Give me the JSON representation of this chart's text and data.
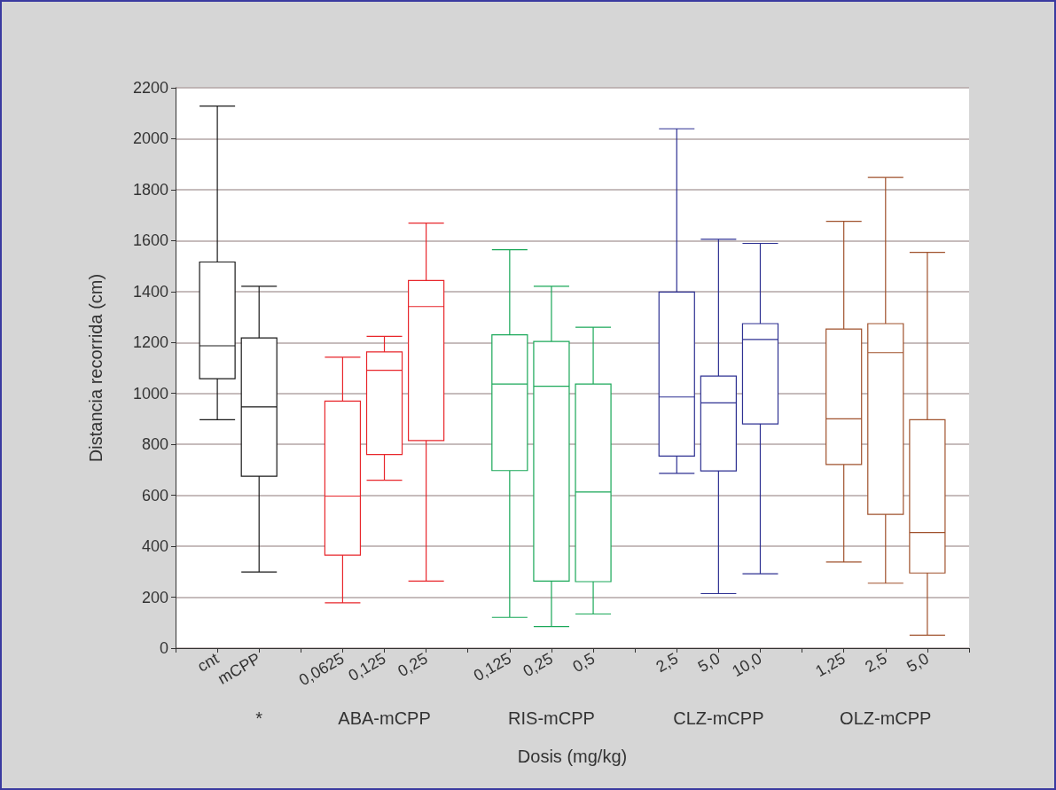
{
  "chart_data": {
    "type": "box",
    "xlabel": "Dosis (mg/kg)",
    "ylabel": "Distancia recorrida (cm)",
    "categories": [
      null,
      "cnt",
      "mCPP",
      null,
      "0,0625",
      "0,125",
      "0,25",
      null,
      "0,125",
      "0,25",
      "0,5",
      null,
      "2,5",
      "5,0",
      "10,0",
      null,
      "1,25",
      "2,5",
      "5,0",
      null
    ],
    "boxes": [
      null,
      {
        "low": 897,
        "q1": 1058,
        "median": 1187,
        "q3": 1516,
        "high": 2128
      },
      {
        "low": 299,
        "q1": 675,
        "median": 947,
        "q3": 1218,
        "high": 1421
      },
      null,
      {
        "low": 178,
        "q1": 365,
        "median": 597,
        "q3": 970,
        "high": 1142
      },
      {
        "low": 659,
        "q1": 760,
        "median": 1091,
        "q3": 1163,
        "high": 1224
      },
      {
        "low": 263,
        "q1": 815,
        "median": 1341,
        "q3": 1443,
        "high": 1669
      },
      null,
      {
        "low": 121,
        "q1": 697,
        "median": 1037,
        "q3": 1230,
        "high": 1564
      },
      {
        "low": 85,
        "q1": 263,
        "median": 1028,
        "q3": 1204,
        "high": 1421
      },
      {
        "low": 134,
        "q1": 261,
        "median": 613,
        "q3": 1037,
        "high": 1260
      },
      null,
      {
        "low": 686,
        "q1": 754,
        "median": 986,
        "q3": 1398,
        "high": 2039
      },
      {
        "low": 214,
        "q1": 696,
        "median": 963,
        "q3": 1068,
        "high": 1605
      },
      {
        "low": 292,
        "q1": 880,
        "median": 1212,
        "q3": 1274,
        "high": 1589
      },
      null,
      {
        "low": 338,
        "q1": 721,
        "median": 900,
        "q3": 1253,
        "high": 1676
      },
      {
        "low": 255,
        "q1": 525,
        "median": 1160,
        "q3": 1274,
        "high": 1848
      },
      {
        "low": 51,
        "q1": 295,
        "median": 454,
        "q3": 897,
        "high": 1554
      },
      null
    ],
    "colors": [
      null,
      "#1a1a1a",
      "#1a1a1a",
      null,
      "#e8262b",
      "#e8262b",
      "#e8262b",
      null,
      "#1aa858",
      "#1aa858",
      "#1aa858",
      null,
      "#2e3192",
      "#2e3192",
      "#2e3192",
      null,
      "#a0522d",
      "#a0522d",
      "#a0522d",
      null
    ],
    "ylim": [
      0,
      2200
    ],
    "yticks": [
      0,
      200,
      400,
      600,
      800,
      1000,
      1200,
      1400,
      1600,
      1800,
      2000,
      2200
    ],
    "grid": "y",
    "annotations": [
      "*",
      "ABA-mCPP",
      "RIS-mCPP",
      "CLZ-mCPP",
      "OLZ-mCPP"
    ]
  }
}
